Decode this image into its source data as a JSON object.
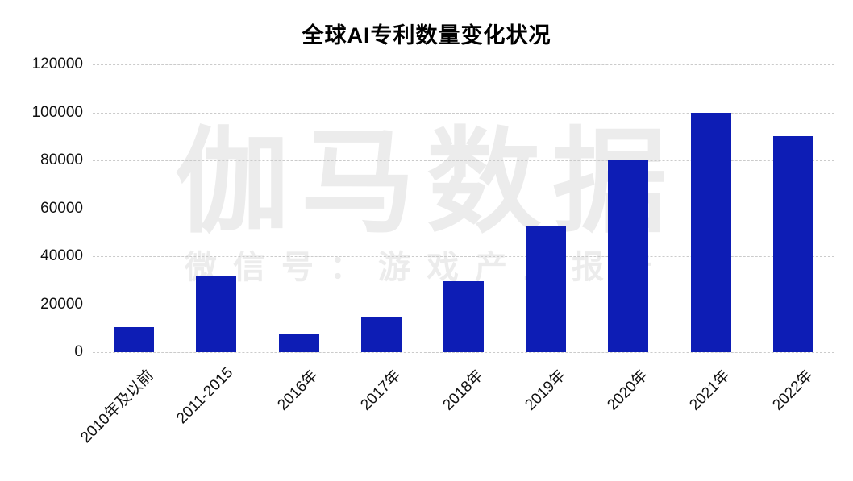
{
  "chart_data": {
    "type": "bar",
    "title": "全球AI专利数量变化状况",
    "categories": [
      "2010年及以前",
      "2011-2015",
      "2016年",
      "2017年",
      "2018年",
      "2019年",
      "2020年",
      "2021年",
      "2022年"
    ],
    "values": [
      10500,
      31500,
      7500,
      14500,
      29500,
      52500,
      80000,
      100000,
      90000
    ],
    "xlabel": "",
    "ylabel": "",
    "ylim": [
      0,
      120000
    ],
    "ytick_interval": 20000,
    "ytick_labels": [
      "0",
      "20000",
      "40000",
      "60000",
      "80000",
      "100000",
      "120000"
    ],
    "grid": "horizontal-dashed",
    "legend_position": "none",
    "bar_color": "#0d1db5",
    "gridline_color": "#cbcbcb",
    "text_color": "#111111",
    "title_color": "#000000",
    "background_color": "#ffffff"
  },
  "watermark": {
    "line1": "伽马数据",
    "line2": "微信号：游戏产业报告",
    "color": "#ececec"
  }
}
